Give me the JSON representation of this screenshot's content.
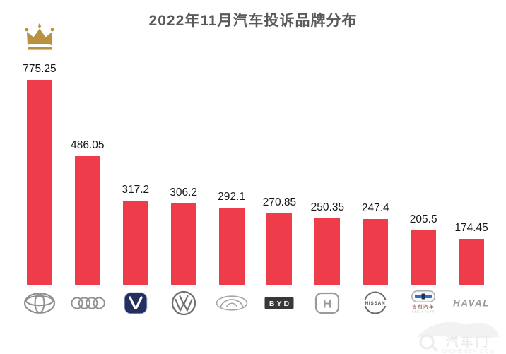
{
  "title": "2022年11月汽车投诉品牌分布",
  "colors": {
    "bar": "#ee3c4a",
    "title_text": "#595959",
    "crown": "#b8923f",
    "watermark": "#efefef"
  },
  "chart_data": {
    "type": "bar",
    "title": "2022年11月汽车投诉品牌分布",
    "categories": [
      "Toyota",
      "Audi",
      "Changan",
      "Volkswagen",
      "Chery",
      "BYD",
      "Honda",
      "Nissan",
      "Geely",
      "Haval"
    ],
    "values": [
      775.25,
      486.05,
      317.2,
      306.2,
      292.1,
      270.85,
      250.35,
      247.4,
      205.5,
      174.45
    ],
    "value_labels": [
      "775.25",
      "486.05",
      "317.2",
      "306.2",
      "292.1",
      "270.85",
      "250.35",
      "247.4",
      "205.5",
      "174.45"
    ],
    "logos": [
      "toyota-logo",
      "audi-logo",
      "changan-logo",
      "volkswagen-logo",
      "chery-logo",
      "byd-logo",
      "honda-logo",
      "nissan-logo",
      "geely-logo",
      "haval-logo"
    ],
    "xlabel": "",
    "ylabel": "",
    "ylim": [
      0,
      830
    ],
    "grid": false,
    "legend": false,
    "bar_color": "#ee3c4a",
    "highlight": {
      "index": 0,
      "icon": "crown-icon"
    }
  },
  "logo_text": {
    "byd": "BYD",
    "nissan": "NISSAN",
    "haval": "HAVAL",
    "geely_cn": "吉利汽车",
    "geely_en": "GEELY AUTO"
  },
  "watermark": {
    "cn": "汽车门",
    "en": "QICHEMEN.COM"
  }
}
